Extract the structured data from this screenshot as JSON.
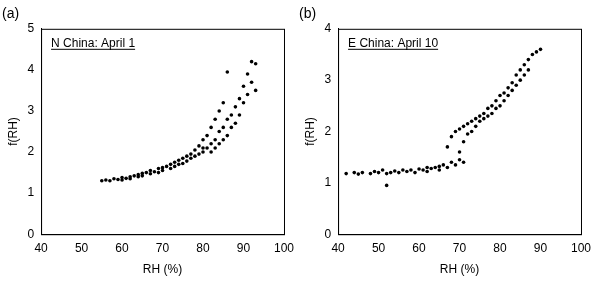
{
  "chart_data": [
    {
      "type": "scatter",
      "title": "(a)",
      "annotation": "N China: April 1",
      "x_label": "RH (%)",
      "y_label": "f(RH)",
      "color": "#000000",
      "marker": "circle",
      "grid": false,
      "xlim": [
        40,
        100
      ],
      "xticks": [
        40,
        50,
        60,
        70,
        80,
        90,
        100
      ],
      "ylim": [
        0,
        5
      ],
      "yticks": [
        0,
        1,
        2,
        3,
        4,
        5
      ],
      "x": [
        55,
        56,
        57,
        58,
        59,
        60,
        60,
        61,
        62,
        62,
        63,
        64,
        64,
        65,
        65,
        66,
        67,
        67,
        68,
        69,
        69,
        70,
        70,
        71,
        72,
        72,
        73,
        73,
        74,
        74,
        75,
        75,
        76,
        76,
        77,
        77,
        78,
        78,
        79,
        79,
        80,
        80,
        80,
        81,
        81,
        82,
        82,
        82,
        83,
        83,
        83,
        84,
        84,
        84,
        85,
        85,
        85,
        86,
        86,
        86,
        87,
        87,
        88,
        88,
        89,
        89,
        90,
        90,
        91,
        91,
        92,
        92,
        93,
        93
      ],
      "values": [
        1.3,
        1.32,
        1.3,
        1.35,
        1.33,
        1.38,
        1.32,
        1.36,
        1.4,
        1.35,
        1.42,
        1.4,
        1.45,
        1.48,
        1.42,
        1.5,
        1.47,
        1.55,
        1.52,
        1.6,
        1.5,
        1.62,
        1.55,
        1.65,
        1.7,
        1.6,
        1.75,
        1.65,
        1.8,
        1.7,
        1.85,
        1.72,
        1.9,
        1.78,
        1.95,
        1.85,
        2.05,
        1.9,
        2.15,
        1.95,
        2.3,
        2.0,
        2.1,
        2.4,
        2.1,
        2.6,
        2.2,
        2.0,
        2.8,
        2.3,
        2.1,
        3.0,
        2.5,
        2.2,
        3.2,
        2.6,
        2.3,
        3.95,
        2.8,
        2.4,
        2.9,
        2.6,
        3.1,
        2.7,
        3.3,
        2.9,
        3.6,
        3.2,
        3.9,
        3.4,
        4.2,
        3.7,
        4.15,
        3.5
      ]
    },
    {
      "type": "scatter",
      "title": "(b)",
      "annotation": "E China: April 10",
      "x_label": "RH (%)",
      "y_label": "f(RH)",
      "color": "#000000",
      "marker": "circle",
      "grid": false,
      "xlim": [
        40,
        100
      ],
      "xticks": [
        40,
        50,
        60,
        70,
        80,
        90,
        100
      ],
      "ylim": [
        0,
        4
      ],
      "yticks": [
        0,
        1,
        2,
        3,
        4
      ],
      "x": [
        42,
        44,
        45,
        46,
        48,
        49,
        50,
        51,
        52,
        52,
        53,
        54,
        55,
        56,
        57,
        58,
        59,
        60,
        61,
        62,
        62,
        63,
        64,
        65,
        65,
        66,
        67,
        67,
        68,
        68,
        69,
        69,
        70,
        70,
        70,
        71,
        71,
        71,
        72,
        72,
        73,
        73,
        74,
        74,
        75,
        75,
        76,
        76,
        77,
        77,
        78,
        78,
        79,
        79,
        80,
        80,
        81,
        81,
        82,
        82,
        83,
        83,
        84,
        84,
        85,
        85,
        86,
        86,
        87,
        87,
        88,
        89,
        90
      ],
      "values": [
        1.18,
        1.2,
        1.17,
        1.2,
        1.18,
        1.22,
        1.2,
        1.25,
        0.95,
        1.18,
        1.2,
        1.23,
        1.2,
        1.25,
        1.22,
        1.25,
        1.2,
        1.27,
        1.25,
        1.3,
        1.22,
        1.28,
        1.3,
        1.32,
        1.25,
        1.35,
        1.3,
        1.7,
        1.4,
        1.9,
        2.0,
        1.35,
        2.05,
        1.45,
        1.6,
        2.1,
        1.8,
        1.4,
        2.15,
        1.95,
        2.2,
        2.0,
        2.25,
        2.1,
        2.3,
        2.2,
        2.35,
        2.25,
        2.45,
        2.3,
        2.5,
        2.35,
        2.6,
        2.45,
        2.7,
        2.5,
        2.75,
        2.6,
        2.85,
        2.7,
        2.95,
        2.8,
        3.1,
        2.9,
        3.2,
        3.0,
        3.3,
        3.1,
        3.4,
        3.2,
        3.5,
        3.55,
        3.6
      ]
    }
  ]
}
